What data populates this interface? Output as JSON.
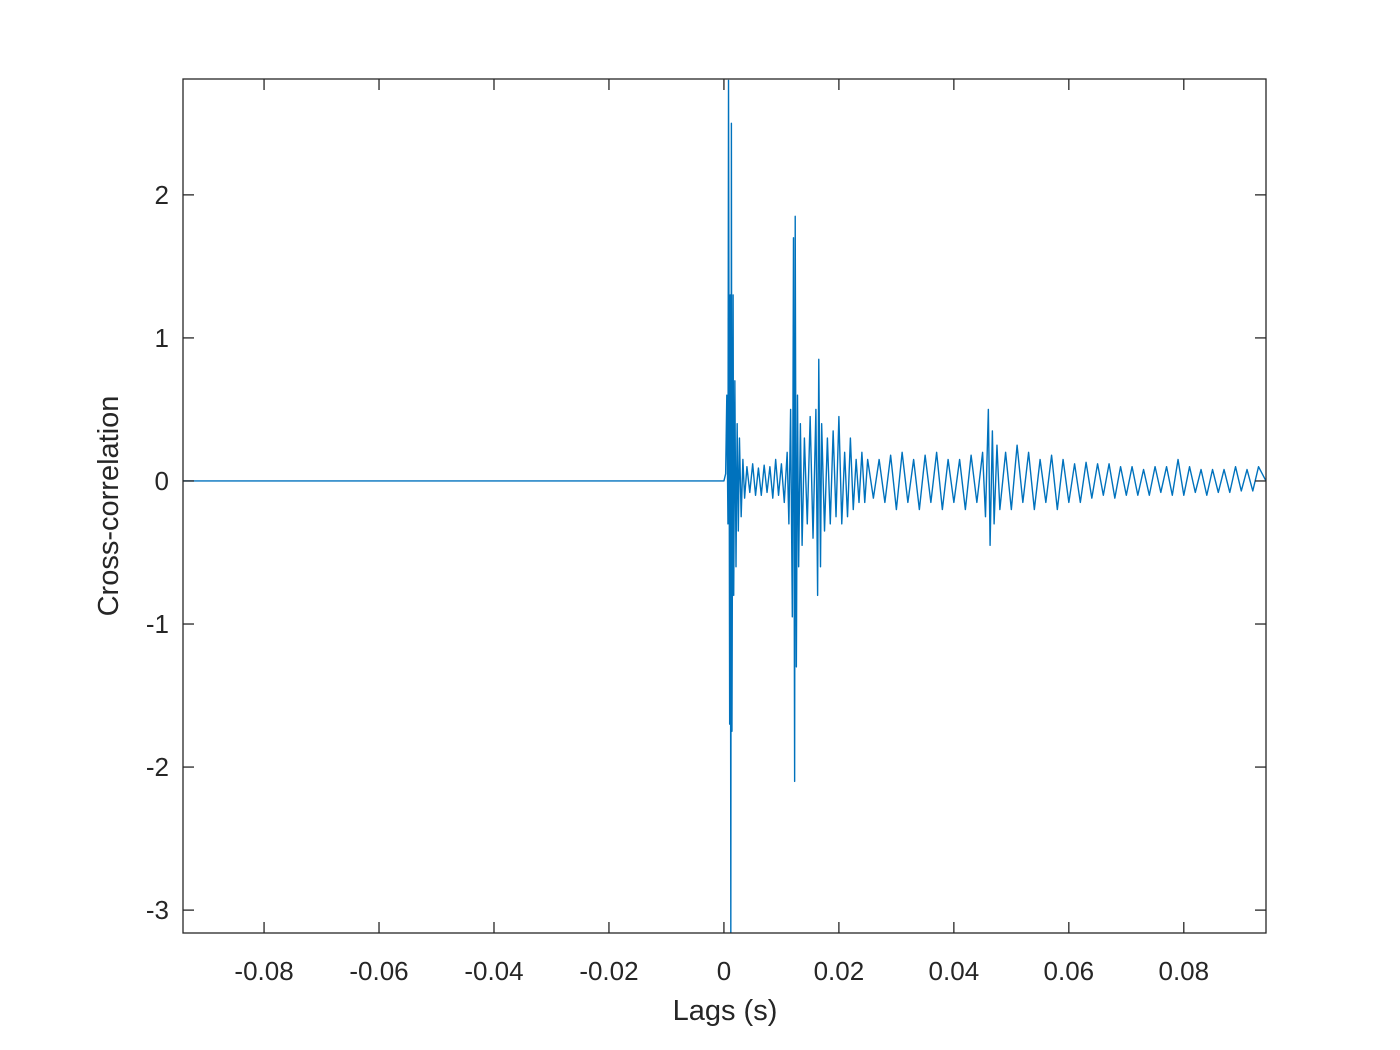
{
  "chart_data": {
    "type": "line",
    "xlabel": "Lags (s)",
    "ylabel": "Cross-correlation",
    "color": "#0072bd",
    "xlim": [
      -0.0941,
      0.0943
    ],
    "ylim": [
      -3.16,
      2.81
    ],
    "xticks": [
      -0.08,
      -0.06,
      -0.04,
      -0.02,
      0,
      0.02,
      0.04,
      0.06,
      0.08
    ],
    "yticks": [
      -3,
      -2,
      -1,
      0,
      1,
      2
    ],
    "grid": false,
    "x": [
      -0.0941,
      0,
      0.0003,
      0.0005,
      0.0007,
      0.0008,
      0.001,
      0.0011,
      0.0012,
      0.0013,
      0.0014,
      0.0016,
      0.0017,
      0.0019,
      0.0021,
      0.0023,
      0.0025,
      0.0027,
      0.003,
      0.0033,
      0.0036,
      0.004,
      0.0045,
      0.005,
      0.0055,
      0.006,
      0.0065,
      0.007,
      0.0075,
      0.008,
      0.0085,
      0.009,
      0.0095,
      0.01,
      0.0105,
      0.011,
      0.0113,
      0.0116,
      0.0119,
      0.0121,
      0.0123,
      0.0124,
      0.0126,
      0.0128,
      0.013,
      0.0133,
      0.0136,
      0.014,
      0.0145,
      0.015,
      0.0155,
      0.016,
      0.0163,
      0.0165,
      0.0168,
      0.017,
      0.0175,
      0.018,
      0.0185,
      0.019,
      0.0195,
      0.02,
      0.0205,
      0.021,
      0.0215,
      0.022,
      0.0225,
      0.023,
      0.0235,
      0.024,
      0.0245,
      0.025,
      0.026,
      0.027,
      0.028,
      0.029,
      0.03,
      0.031,
      0.032,
      0.033,
      0.034,
      0.035,
      0.036,
      0.037,
      0.038,
      0.039,
      0.04,
      0.041,
      0.042,
      0.043,
      0.044,
      0.045,
      0.0455,
      0.046,
      0.0463,
      0.0467,
      0.047,
      0.0475,
      0.048,
      0.049,
      0.05,
      0.051,
      0.052,
      0.053,
      0.054,
      0.055,
      0.056,
      0.057,
      0.058,
      0.059,
      0.06,
      0.061,
      0.062,
      0.063,
      0.064,
      0.065,
      0.066,
      0.067,
      0.068,
      0.069,
      0.07,
      0.071,
      0.072,
      0.073,
      0.074,
      0.075,
      0.076,
      0.077,
      0.078,
      0.079,
      0.08,
      0.081,
      0.082,
      0.083,
      0.084,
      0.085,
      0.086,
      0.087,
      0.088,
      0.089,
      0.09,
      0.091,
      0.092,
      0.093,
      0.0943
    ],
    "values": [
      0,
      0,
      0.05,
      0.6,
      -0.3,
      2.8,
      -1.7,
      1.3,
      -3.16,
      2.5,
      -1.75,
      1.3,
      -0.8,
      0.7,
      -0.6,
      0.4,
      -0.35,
      0.3,
      -0.25,
      0.15,
      -0.12,
      0.1,
      -0.08,
      0.12,
      -0.1,
      0.09,
      -0.1,
      0.11,
      -0.08,
      0.1,
      -0.12,
      0.15,
      -0.1,
      0.12,
      -0.15,
      0.2,
      -0.3,
      0.5,
      -0.95,
      1.7,
      -2.1,
      1.85,
      -1.3,
      0.6,
      -0.6,
      0.4,
      -0.45,
      0.3,
      -0.3,
      0.45,
      -0.4,
      0.5,
      -0.8,
      0.85,
      -0.6,
      0.4,
      -0.35,
      0.3,
      -0.3,
      0.35,
      -0.25,
      0.45,
      -0.3,
      0.2,
      -0.25,
      0.3,
      -0.2,
      0.15,
      -0.15,
      0.2,
      -0.15,
      0.15,
      -0.12,
      0.15,
      -0.15,
      0.18,
      -0.2,
      0.2,
      -0.15,
      0.15,
      -0.2,
      0.18,
      -0.15,
      0.2,
      -0.2,
      0.15,
      -0.15,
      0.15,
      -0.2,
      0.18,
      -0.15,
      0.2,
      -0.25,
      0.5,
      -0.45,
      0.35,
      -0.3,
      0.25,
      -0.2,
      0.2,
      -0.2,
      0.25,
      -0.15,
      0.2,
      -0.2,
      0.15,
      -0.15,
      0.18,
      -0.2,
      0.15,
      -0.15,
      0.12,
      -0.15,
      0.13,
      -0.12,
      0.12,
      -0.1,
      0.12,
      -0.12,
      0.1,
      -0.1,
      0.1,
      -0.1,
      0.08,
      -0.1,
      0.1,
      -0.08,
      0.1,
      -0.1,
      0.15,
      -0.1,
      0.1,
      -0.08,
      0.08,
      -0.1,
      0.08,
      -0.08,
      0.08,
      -0.08,
      0.1,
      -0.07,
      0.08,
      -0.07,
      0.1,
      0
    ]
  }
}
